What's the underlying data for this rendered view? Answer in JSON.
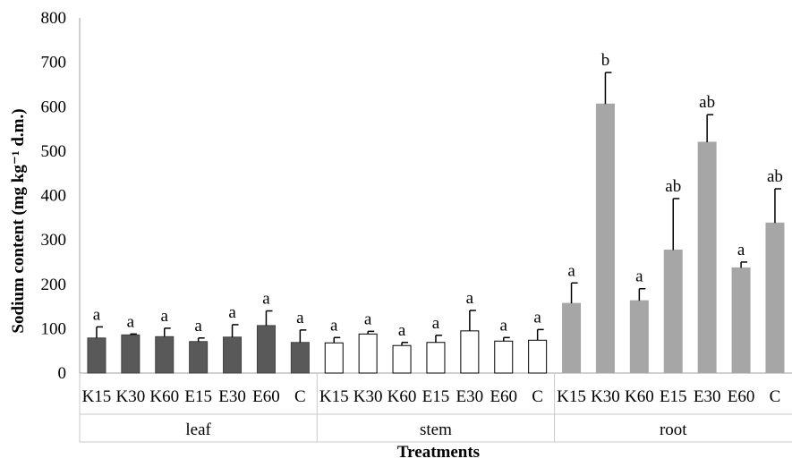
{
  "chart_data": {
    "type": "bar",
    "xlabel": "Treatments",
    "ylabel": "Sodium content (mg kg⁻¹ d.m.)",
    "ylim": [
      0,
      800
    ],
    "yticks": [
      0,
      100,
      200,
      300,
      400,
      500,
      600,
      700,
      800
    ],
    "grid": false,
    "legend": "none",
    "groups": [
      {
        "name": "leaf",
        "color": "#595959",
        "stroke": "#404040",
        "categories": [
          "K15",
          "K30",
          "K60",
          "E15",
          "E30",
          "E60",
          "C"
        ],
        "values": [
          79,
          86,
          82,
          71,
          81,
          107,
          69
        ],
        "errors": [
          25,
          2,
          19,
          8,
          28,
          33,
          28
        ],
        "letters": [
          "a",
          "a",
          "a",
          "a",
          "a",
          "a",
          "a"
        ]
      },
      {
        "name": "stem",
        "color": "#ffffff",
        "stroke": "#000000",
        "categories": [
          "K15",
          "K30",
          "K60",
          "E15",
          "E30",
          "E60",
          "C"
        ],
        "values": [
          68,
          88,
          62,
          69,
          95,
          72,
          74
        ],
        "errors": [
          12,
          6,
          7,
          16,
          46,
          8,
          24
        ],
        "letters": [
          "a",
          "a",
          "a",
          "a",
          "a",
          "a",
          "a"
        ]
      },
      {
        "name": "root",
        "color": "#a6a6a6",
        "stroke": "#a6a6a6",
        "categories": [
          "K15",
          "K30",
          "K60",
          "E15",
          "E30",
          "E60",
          "C"
        ],
        "values": [
          157,
          606,
          163,
          277,
          520,
          237,
          338
        ],
        "errors": [
          46,
          71,
          27,
          116,
          62,
          13,
          77
        ],
        "letters": [
          "a",
          "b",
          "a",
          "ab",
          "ab",
          "a",
          "ab"
        ]
      }
    ]
  }
}
